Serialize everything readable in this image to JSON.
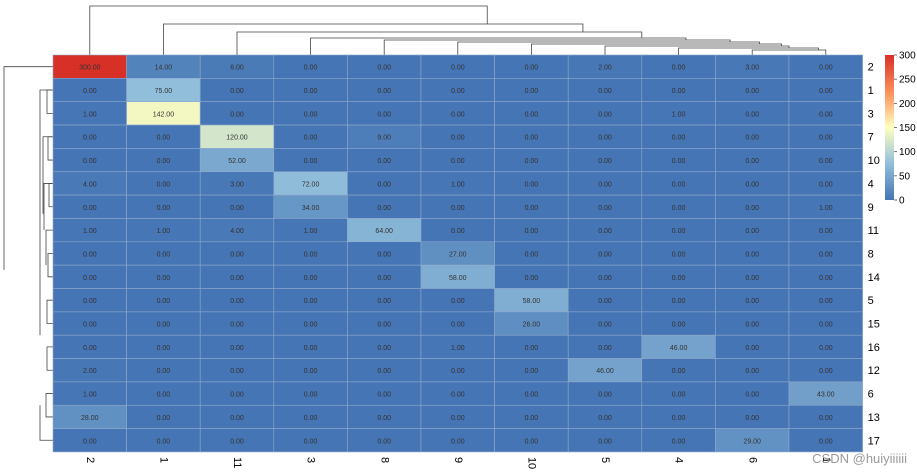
{
  "chart_data": {
    "type": "heatmap",
    "title": "",
    "columns": [
      "2",
      "1",
      "11",
      "3",
      "8",
      "9",
      "10",
      "5",
      "4",
      "6",
      "1"
    ],
    "rows": [
      "2",
      "1",
      "3",
      "7",
      "10",
      "4",
      "9",
      "11",
      "8",
      "14",
      "5",
      "15",
      "16",
      "12",
      "6",
      "13",
      "17"
    ],
    "values": [
      [
        300,
        14,
        6,
        0,
        0,
        0,
        0,
        2,
        0,
        3,
        0
      ],
      [
        0,
        75,
        0,
        0,
        0,
        0,
        0,
        0,
        0,
        0,
        0
      ],
      [
        1,
        142,
        0,
        0,
        0,
        0,
        0,
        0,
        1,
        0,
        0
      ],
      [
        0,
        0,
        120,
        0,
        9,
        0,
        0,
        0,
        0,
        0,
        0
      ],
      [
        0,
        0,
        52,
        0,
        0,
        0,
        0,
        0,
        0,
        0,
        0
      ],
      [
        4,
        0,
        3,
        72,
        0,
        1,
        0,
        0,
        0,
        0,
        0
      ],
      [
        0,
        0,
        0,
        34,
        0,
        0,
        0,
        0,
        0,
        0,
        1
      ],
      [
        1,
        1,
        4,
        1,
        64,
        0,
        0,
        0,
        0,
        0,
        0
      ],
      [
        0,
        0,
        0,
        0,
        0,
        27,
        0,
        0,
        0,
        0,
        0
      ],
      [
        0,
        0,
        0,
        0,
        0,
        58,
        0,
        0,
        0,
        0,
        0
      ],
      [
        0,
        0,
        0,
        0,
        0,
        0,
        58,
        0,
        0,
        0,
        0
      ],
      [
        0,
        0,
        0,
        0,
        0,
        0,
        26,
        0,
        0,
        0,
        0
      ],
      [
        0,
        0,
        0,
        0,
        0,
        1,
        0,
        0,
        46,
        0,
        0
      ],
      [
        2,
        0,
        0,
        0,
        0,
        0,
        0,
        46,
        0,
        0,
        0
      ],
      [
        1,
        0,
        0,
        0,
        0,
        0,
        0,
        0,
        0,
        0,
        43
      ],
      [
        28,
        0,
        0,
        0,
        0,
        0,
        0,
        0,
        0,
        0,
        0
      ],
      [
        0,
        0,
        0,
        0,
        0,
        0,
        0,
        0,
        0,
        29,
        0
      ]
    ],
    "value_format": "2 decimals",
    "color_scale": {
      "min": 0,
      "max": 300,
      "colors": [
        "#4575b4",
        "#91bfdb",
        "#ffffbf",
        "#fc8d59",
        "#d73027"
      ]
    },
    "legend": {
      "position": "right",
      "ticks": [
        0,
        50,
        100,
        150,
        200,
        250,
        300
      ]
    },
    "dendrograms": {
      "rows": true,
      "columns": true
    },
    "grid": true
  },
  "watermark": "CSDN @huiyiiiiii"
}
